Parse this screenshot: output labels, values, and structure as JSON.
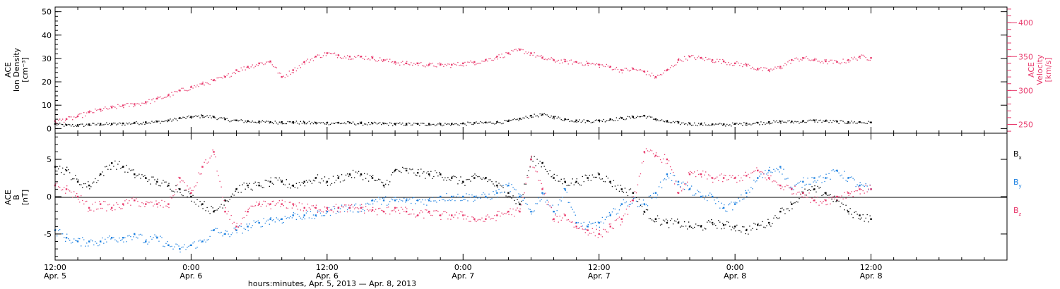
{
  "chart_data": [
    {
      "type": "scatter",
      "panel": "top",
      "x_axis": {
        "unit": "hours since Apr. 5 12:00",
        "range": [
          0,
          84
        ],
        "ticks": [
          {
            "top": "12:00",
            "bottom": "Apr. 5",
            "x": 0
          },
          {
            "top": "0:00",
            "bottom": "Apr. 6",
            "x": 12
          },
          {
            "top": "12:00",
            "bottom": "Apr. 6",
            "x": 24
          },
          {
            "top": "0:00",
            "bottom": "Apr. 7",
            "x": 36
          },
          {
            "top": "12:00",
            "bottom": "Apr. 7",
            "x": 48
          },
          {
            "top": "0:00",
            "bottom": "Apr. 8",
            "x": 60
          },
          {
            "top": "12:00",
            "bottom": "Apr. 8",
            "x": 72
          }
        ],
        "label": "hours:minutes, Apr.  5, 2013 — Apr.  8, 2013"
      },
      "left_axis": {
        "label_lines": [
          "ACE",
          "Ion Density",
          "[cm⁻³]"
        ],
        "range": [
          -2,
          52
        ],
        "ticks": [
          0,
          10,
          20,
          30,
          40,
          50
        ],
        "color": "#000000"
      },
      "right_axis": {
        "label_lines": [
          "ACE",
          "Velocity",
          "[km/s]"
        ],
        "range": [
          237,
          423
        ],
        "ticks": [
          250,
          300,
          350,
          400
        ],
        "color": "#e8386b"
      },
      "series": [
        {
          "name": "Ion Density",
          "axis": "left",
          "color": "#000000",
          "x": [
            0,
            1,
            2,
            3,
            4,
            5,
            6,
            7,
            8,
            9,
            10,
            11,
            12,
            13,
            14,
            15,
            16,
            17,
            18,
            19,
            20,
            21,
            22,
            23,
            24,
            25,
            26,
            27,
            28,
            29,
            30,
            31,
            32,
            33,
            34,
            35,
            36,
            37,
            38,
            39,
            40,
            41,
            42,
            43,
            44,
            45,
            46,
            47,
            48,
            49,
            50,
            51,
            52,
            53,
            54,
            55,
            56,
            57,
            58,
            59,
            60,
            61,
            62,
            63,
            64,
            65,
            66,
            67,
            68,
            69,
            70,
            71,
            72
          ],
          "y": [
            2.0,
            1.5,
            1.5,
            1.8,
            2.0,
            2.0,
            2.2,
            2.5,
            2.7,
            3.0,
            3.5,
            4.5,
            5.0,
            5.5,
            5.0,
            4.0,
            3.5,
            3.2,
            3.0,
            2.8,
            2.8,
            2.8,
            2.6,
            2.5,
            2.5,
            2.5,
            2.5,
            2.3,
            2.2,
            2.2,
            2.0,
            2.0,
            2.0,
            2.0,
            2.0,
            2.0,
            2.2,
            2.4,
            2.6,
            2.8,
            3.2,
            4.2,
            5.5,
            6.0,
            5.0,
            4.0,
            3.5,
            3.3,
            3.5,
            4.0,
            4.5,
            5.0,
            5.5,
            4.0,
            3.0,
            2.5,
            2.2,
            2.0,
            1.8,
            1.8,
            2.0,
            2.2,
            2.5,
            2.8,
            3.0,
            3.0,
            3.2,
            3.5,
            3.3,
            3.0,
            2.8,
            2.8,
            2.6
          ]
        },
        {
          "name": "Velocity",
          "axis": "right",
          "color": "#e8386b",
          "x": [
            0,
            1,
            2,
            3,
            4,
            5,
            6,
            7,
            8,
            9,
            10,
            11,
            12,
            13,
            14,
            15,
            16,
            17,
            18,
            19,
            20,
            21,
            22,
            23,
            24,
            25,
            26,
            27,
            28,
            29,
            30,
            31,
            32,
            33,
            34,
            35,
            36,
            37,
            38,
            39,
            40,
            41,
            42,
            43,
            44,
            45,
            46,
            47,
            48,
            49,
            50,
            51,
            52,
            53,
            54,
            55,
            56,
            57,
            58,
            59,
            60,
            61,
            62,
            63,
            64,
            65,
            66,
            67,
            68,
            69,
            70,
            71,
            72
          ],
          "y": [
            255,
            258,
            262,
            268,
            272,
            275,
            278,
            280,
            283,
            288,
            293,
            300,
            305,
            310,
            315,
            320,
            330,
            335,
            340,
            343,
            320,
            330,
            342,
            350,
            355,
            352,
            350,
            350,
            348,
            345,
            342,
            340,
            340,
            338,
            338,
            338,
            340,
            342,
            345,
            350,
            355,
            360,
            355,
            348,
            345,
            343,
            342,
            340,
            338,
            335,
            330,
            332,
            328,
            320,
            330,
            345,
            350,
            348,
            345,
            343,
            340,
            338,
            332,
            330,
            335,
            345,
            348,
            345,
            343,
            342,
            345,
            350,
            348
          ]
        }
      ]
    },
    {
      "type": "scatter",
      "panel": "bottom",
      "x_axis": {
        "unit": "hours since Apr. 5 12:00",
        "range": [
          0,
          84
        ]
      },
      "left_axis": {
        "label_lines": [
          "ACE",
          "B",
          "[nT]"
        ],
        "range": [
          -8.5,
          8.5
        ],
        "ticks": [
          5,
          0,
          -5
        ],
        "zero_line": true
      },
      "legend": {
        "placement": "right",
        "entries": [
          {
            "base": "B",
            "sub": "x",
            "color": "#000000"
          },
          {
            "base": "B",
            "sub": "y",
            "color": "#1a7fe0"
          },
          {
            "base": "B",
            "sub": "z",
            "color": "#e8386b"
          }
        ]
      },
      "series": [
        {
          "name": "Bx",
          "color": "#000000",
          "x": [
            0,
            1,
            2,
            3,
            4,
            5,
            6,
            7,
            8,
            9,
            10,
            11,
            12,
            13,
            14,
            15,
            16,
            17,
            18,
            19,
            20,
            21,
            22,
            23,
            24,
            25,
            26,
            27,
            28,
            29,
            30,
            31,
            32,
            33,
            34,
            35,
            36,
            37,
            38,
            39,
            40,
            41,
            42,
            43,
            44,
            45,
            46,
            47,
            48,
            49,
            50,
            51,
            52,
            53,
            54,
            55,
            56,
            57,
            58,
            59,
            60,
            61,
            62,
            63,
            64,
            65,
            66,
            67,
            68,
            69,
            70,
            71,
            72
          ],
          "y": [
            4.0,
            3.5,
            2.0,
            1.5,
            3.0,
            4.5,
            4.0,
            3.0,
            2.5,
            2.0,
            1.5,
            1.0,
            0.0,
            -1.0,
            -2.0,
            -0.5,
            1.0,
            1.5,
            1.5,
            2.0,
            2.0,
            1.5,
            2.0,
            2.5,
            2.0,
            2.5,
            3.0,
            3.0,
            2.5,
            1.5,
            3.5,
            3.5,
            3.2,
            3.0,
            3.0,
            2.5,
            2.0,
            2.5,
            2.5,
            1.5,
            0.5,
            -1.0,
            5.0,
            4.5,
            2.5,
            2.0,
            2.0,
            2.5,
            3.0,
            2.0,
            1.0,
            0.5,
            -2.0,
            -3.0,
            -3.5,
            -3.5,
            -4.0,
            -4.0,
            -3.5,
            -3.8,
            -4.0,
            -4.5,
            -3.8,
            -3.5,
            -2.0,
            -1.0,
            0.5,
            1.0,
            0.5,
            -0.5,
            -2.0,
            -2.5,
            -3.0
          ]
        },
        {
          "name": "By",
          "color": "#1a7fe0",
          "x": [
            0,
            1,
            2,
            3,
            4,
            5,
            6,
            7,
            8,
            9,
            10,
            11,
            12,
            13,
            14,
            15,
            16,
            17,
            18,
            19,
            20,
            21,
            22,
            23,
            24,
            25,
            26,
            27,
            28,
            29,
            30,
            31,
            32,
            33,
            34,
            35,
            36,
            37,
            38,
            39,
            40,
            41,
            42,
            43,
            44,
            45,
            46,
            47,
            48,
            49,
            50,
            51,
            52,
            53,
            54,
            55,
            56,
            57,
            58,
            59,
            60,
            61,
            62,
            63,
            64,
            65,
            66,
            67,
            68,
            69,
            70,
            71,
            72
          ],
          "y": [
            -4.5,
            -5.5,
            -6.0,
            -6.0,
            -6.0,
            -5.5,
            -5.5,
            -5.0,
            -6.0,
            -5.5,
            -6.5,
            -7.0,
            -6.5,
            -6.0,
            -4.5,
            -5.0,
            -4.5,
            -4.0,
            -3.5,
            -3.0,
            -3.0,
            -2.5,
            -2.5,
            -2.5,
            -2.0,
            -1.5,
            -1.5,
            -1.5,
            -0.5,
            -0.5,
            -0.5,
            -0.5,
            -0.5,
            -0.5,
            0.0,
            0.0,
            0.0,
            0.0,
            0.0,
            0.5,
            1.5,
            0.0,
            -2.0,
            0.5,
            -2.0,
            1.0,
            -3.5,
            -4.0,
            -3.5,
            -2.5,
            -1.0,
            -0.5,
            -1.0,
            0.5,
            3.0,
            2.0,
            1.0,
            0.0,
            0.0,
            -1.5,
            -1.0,
            0.5,
            2.5,
            3.5,
            4.0,
            1.0,
            2.0,
            2.5,
            2.5,
            3.5,
            2.5,
            1.5,
            1.0
          ]
        },
        {
          "name": "Bz",
          "color": "#e8386b",
          "x": [
            0,
            1,
            2,
            3,
            4,
            5,
            6,
            7,
            8,
            9,
            10,
            11,
            12,
            13,
            14,
            15,
            16,
            17,
            18,
            19,
            20,
            21,
            22,
            23,
            24,
            25,
            26,
            27,
            28,
            29,
            30,
            31,
            32,
            33,
            34,
            35,
            36,
            37,
            38,
            39,
            40,
            41,
            42,
            43,
            44,
            45,
            46,
            47,
            48,
            49,
            50,
            51,
            52,
            53,
            54,
            55,
            56,
            57,
            58,
            59,
            60,
            61,
            62,
            63,
            64,
            65,
            66,
            67,
            68,
            69,
            70,
            71,
            72
          ],
          "y": [
            1.5,
            1.0,
            0.0,
            -1.5,
            -1.0,
            -1.5,
            -1.0,
            -0.5,
            -1.0,
            -1.0,
            -1.0,
            2.5,
            0.5,
            4.0,
            6.0,
            -2.0,
            -4.0,
            -2.0,
            -1.0,
            -1.0,
            -1.0,
            -1.0,
            -1.5,
            -1.5,
            -1.5,
            -1.5,
            -1.5,
            -1.5,
            -1.8,
            -2.0,
            -1.5,
            -2.0,
            -2.5,
            -2.0,
            -2.5,
            -2.5,
            -2.5,
            -3.0,
            -3.0,
            -2.5,
            -2.0,
            -2.0,
            5.0,
            1.0,
            -3.0,
            -2.5,
            -4.0,
            -4.5,
            -5.0,
            -4.0,
            -3.0,
            -0.5,
            6.0,
            5.5,
            5.0,
            0.5,
            3.0,
            3.0,
            2.5,
            2.5,
            2.5,
            2.8,
            3.5,
            2.5,
            1.5,
            1.0,
            0.5,
            -0.5,
            -0.5,
            0.0,
            0.5,
            1.0,
            1.0
          ]
        }
      ]
    }
  ]
}
